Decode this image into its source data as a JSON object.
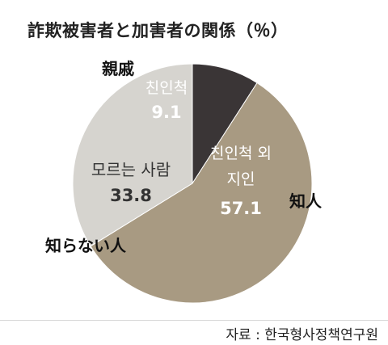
{
  "title": "詐欺被害者と加害者の関係（％）",
  "source": "자료 : 한국형사정책연구원",
  "chart_data": {
    "type": "pie",
    "title": "詐欺被害者と加害者の関係（％）",
    "slices": [
      {
        "label_ko": "친인척",
        "label_ja": "親戚",
        "value": 9.1,
        "color": "#3a3536"
      },
      {
        "label_ko": "친인척 외 지인",
        "label_ja": "知人",
        "value": 57.1,
        "color": "#a89a82"
      },
      {
        "label_ko": "모르는 사람",
        "label_ja": "知らない人",
        "value": 33.8,
        "color": "#d6d4cf"
      }
    ],
    "start_angle_deg": 0,
    "direction": "clockwise",
    "legend": "none"
  }
}
